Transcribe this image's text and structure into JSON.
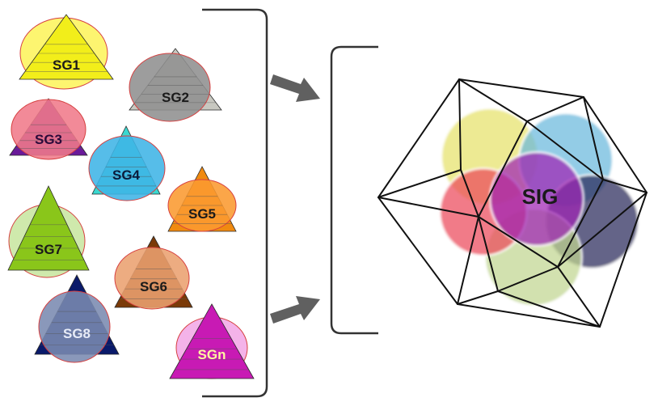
{
  "groups": [
    {
      "label": "SG1",
      "tri": "#f2ee1a",
      "circle": "#fdf45c",
      "text": "#1a1a1a"
    },
    {
      "label": "SG2",
      "tri": "#c8c8c0",
      "circle": "#8f8f8f",
      "text": "#1a1a1a"
    },
    {
      "label": "SG3",
      "tri": "#6a1a9a",
      "circle": "#f07a8a",
      "text": "#2a0a3a"
    },
    {
      "label": "SG4",
      "tri": "#3ad8d0",
      "circle": "#3fb4e6",
      "text": "#0a1a3a"
    },
    {
      "label": "SG5",
      "tri": "#f08a10",
      "circle": "#fa9a30",
      "text": "#1a1a1a"
    },
    {
      "label": "SG7",
      "tri": "#8ac61a",
      "circle": "#c8e6a0",
      "text": "#1a1a1a"
    },
    {
      "label": "SG6",
      "tri": "#7a3a08",
      "circle": "#eaa070",
      "text": "#1a1a1a"
    },
    {
      "label": "SG8",
      "tri": "#0a1a6a",
      "circle": "#7a8ab0",
      "text": "#e8ecf8"
    },
    {
      "label": "SGn",
      "tri": "#c81ab4",
      "circle": "#f2a8e6",
      "text": "#fff6a0"
    }
  ],
  "merged": {
    "label": "SIG",
    "circles": [
      "#e6e26a",
      "#6ab8dc",
      "#2a2a5a",
      "#c0d690",
      "#ec4a5a",
      "#a020b4"
    ]
  },
  "colors": {
    "bracket": "#333333",
    "arrow": "#606060",
    "outline": "#111111",
    "circle_stroke": "#d64040"
  }
}
